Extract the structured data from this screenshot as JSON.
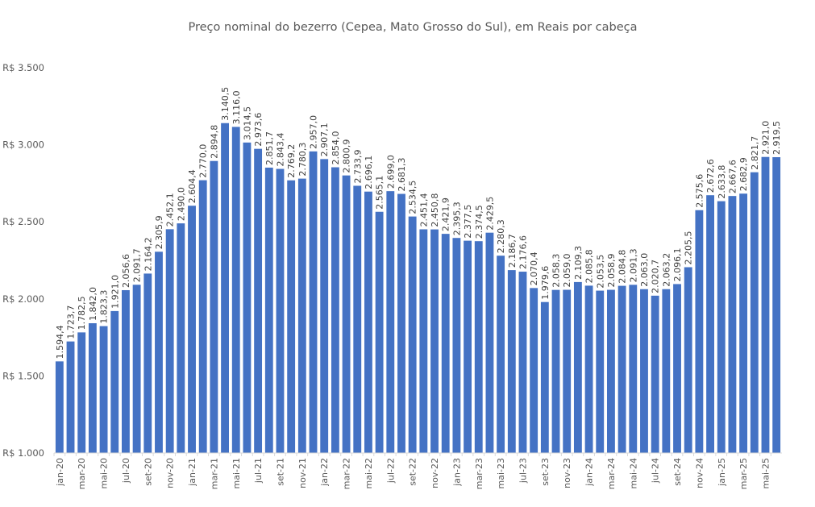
{
  "chart_data": {
    "type": "bar",
    "title": "Preço nominal do bezerro (Cepea, Mato Grosso do Sul), em Reais por cabeça",
    "xlabel": "",
    "ylabel": "",
    "ylim": [
      1000,
      3500
    ],
    "yticks": [
      1000,
      1500,
      2000,
      2500,
      3000,
      3500
    ],
    "ytick_labels": [
      "R$ 1.000",
      "R$ 1.500",
      "R$ 2.000",
      "R$ 2.500",
      "R$ 3.000",
      "R$ 3.500"
    ],
    "grid": false,
    "bar_color": "#4472C4",
    "categories": [
      "jan-20",
      "fev-20",
      "mar-20",
      "abr-20",
      "mai-20",
      "jun-20",
      "jul-20",
      "ago-20",
      "set-20",
      "out-20",
      "nov-20",
      "dez-20",
      "jan-21",
      "fev-21",
      "mar-21",
      "abr-21",
      "mai-21",
      "jun-21",
      "jul-21",
      "ago-21",
      "set-21",
      "out-21",
      "nov-21",
      "dez-21",
      "jan-22",
      "fev-22",
      "mar-22",
      "abr-22",
      "mai-22",
      "jun-22",
      "jul-22",
      "ago-22",
      "set-22",
      "out-22",
      "nov-22",
      "dez-22",
      "jan-23",
      "fev-23",
      "mar-23",
      "abr-23",
      "mai-23",
      "jun-23",
      "jul-23",
      "ago-23",
      "set-23",
      "out-23",
      "nov-23",
      "dez-23",
      "jan-24",
      "fev-24",
      "mar-24",
      "abr-24",
      "mai-24",
      "jun-24",
      "jul-24",
      "ago-24",
      "set-24",
      "out-24",
      "nov-24",
      "dez-24",
      "jan-25",
      "fev-25",
      "mar-25",
      "abr-25",
      "mai-25",
      "jun-25"
    ],
    "values": [
      1594.4,
      1723.7,
      1782.5,
      1842.0,
      1823.3,
      1921.0,
      2056.6,
      2091.7,
      2164.2,
      2305.9,
      2452.1,
      2490.0,
      2604.4,
      2770.0,
      2894.8,
      3140.5,
      3116.0,
      3014.5,
      2973.6,
      2851.7,
      2843.4,
      2769.2,
      2780.3,
      2957.0,
      2907.1,
      2854.0,
      2800.9,
      2733.9,
      2696.1,
      2565.1,
      2699.0,
      2681.3,
      2534.5,
      2451.4,
      2450.8,
      2421.9,
      2395.3,
      2377.5,
      2374.5,
      2429.5,
      2280.3,
      2186.7,
      2176.6,
      2070.4,
      1979.6,
      2058.3,
      2059.0,
      2109.3,
      2085.8,
      2053.5,
      2058.9,
      2084.8,
      2091.3,
      2063.0,
      2020.7,
      2063.2,
      2096.1,
      2205.5,
      2575.6,
      2672.6,
      2633.8,
      2667.6,
      2682.9,
      2821.7,
      2921.0,
      2919.5
    ],
    "data_labels": [
      "1.594,4",
      "1.723,7",
      "1.782,5",
      "1.842,0",
      "1.823,3",
      "1.921,0",
      "2.056,6",
      "2.091,7",
      "2.164,2",
      "2.305,9",
      "2.452,1",
      "2.490,0",
      "2.604,4",
      "2.770,0",
      "2.894,8",
      "3.140,5",
      "3.116,0",
      "3.014,5",
      "2.973,6",
      "2.851,7",
      "2.843,4",
      "2.769,2",
      "2.780,3",
      "2.957,0",
      "2.907,1",
      "2.854,0",
      "2.800,9",
      "2.733,9",
      "2.696,1",
      "2.565,1",
      "2.699,0",
      "2.681,3",
      "2.534,5",
      "2.451,4",
      "2.450,8",
      "2.421,9",
      "2.395,3",
      "2.377,5",
      "2.374,5",
      "2.429,5",
      "2.280,3",
      "2.186,7",
      "2.176,6",
      "2.070,4",
      "1.979,6",
      "2.058,3",
      "2.059,0",
      "2.109,3",
      "2.085,8",
      "2.053,5",
      "2.058,9",
      "2.084,8",
      "2.091,3",
      "2.063,0",
      "2.020,7",
      "2.063,2",
      "2.096,1",
      "2.205,5",
      "2.575,6",
      "2.672,6",
      "2.633,8",
      "2.667,6",
      "2.682,9",
      "2.821,7",
      "2.921,0",
      "2.919,5"
    ],
    "x_tick_every": 2
  }
}
